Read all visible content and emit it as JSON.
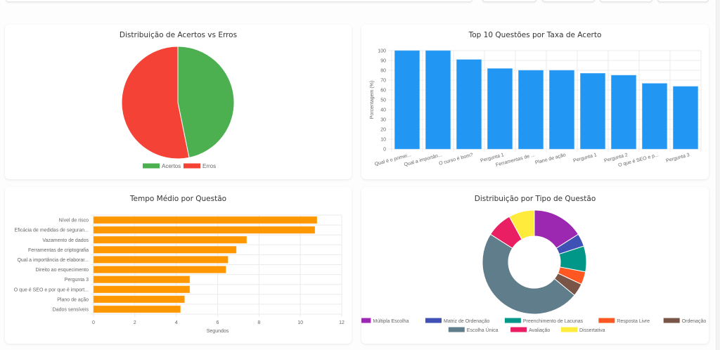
{
  "topbar": {
    "buttons": [
      "",
      "",
      "",
      ""
    ]
  },
  "charts": {
    "pie_title": "Distribuição de Acertos vs Erros",
    "bar_title": "Top 10 Questões por Taxa de Acerto",
    "hbar_title": "Tempo Médio por Questão",
    "donut_title": "Distribuição por Tipo de Questão"
  },
  "chart_data": [
    {
      "type": "pie",
      "title": "Distribuição de Acertos vs Erros",
      "labels": [
        "Acertos",
        "Erros"
      ],
      "values": [
        46.8,
        53.2
      ],
      "colors": [
        "#4caf50",
        "#f44336"
      ],
      "legend": "bottom"
    },
    {
      "type": "bar",
      "title": "Top 10 Questões por Taxa de Acerto",
      "categories": [
        "Qual é o primei...",
        "Qual a importân...",
        "O curso é bom?",
        "Pergunta 1",
        "Ferramentas de ...",
        "Plano de ação",
        "Pergunta 1",
        "Pergunta 2",
        "O que é SEO e p...",
        "Pergunta 3"
      ],
      "values": [
        100,
        100,
        90.9,
        81.8,
        80,
        80,
        76.9,
        75,
        66.7,
        63.6
      ],
      "xlabel": "",
      "ylabel": "Porcentagem (%)",
      "ylim": [
        0,
        100
      ],
      "yticks": [
        0,
        10,
        20,
        30,
        40,
        50,
        60,
        70,
        80,
        90,
        100
      ],
      "color": "#2196f3",
      "grid": true
    },
    {
      "type": "bar",
      "orientation": "horizontal",
      "title": "Tempo Médio por Questão",
      "categories": [
        "Nível de risco",
        "Eficácia de medidas de seguran...",
        "Vazamento de dados",
        "Ferramentas de criptografia",
        "Qual a importância de elaborar...",
        "Direito ao esquecimento",
        "Pergunta 3",
        "O que é SEO e por que é import...",
        "Plano de ação",
        "Dados sensíveis"
      ],
      "values": [
        10.8,
        10.7,
        7.4,
        6.9,
        6.5,
        6.4,
        4.65,
        4.65,
        4.4,
        4.2
      ],
      "xlabel": "Segundos",
      "ylabel": "",
      "xlim": [
        0,
        12
      ],
      "xticks": [
        0,
        2,
        4,
        6,
        8,
        10,
        12
      ],
      "color": "#ff9800",
      "grid": true
    },
    {
      "type": "pie",
      "variant": "doughnut",
      "title": "Distribuição por Tipo de Questão",
      "labels": [
        "Múltipla Escolha",
        "Matriz de Ordenação",
        "Preenchimento de Lacunas",
        "Resposta Livre",
        "Ordenação",
        "Escolha Única",
        "Avaliação",
        "Dissertativa"
      ],
      "values": [
        4,
        1,
        2,
        1,
        1,
        12,
        2,
        2
      ],
      "colors": [
        "#9c27b0",
        "#3f51b5",
        "#009688",
        "#ff5722",
        "#795548",
        "#607d8b",
        "#e91e63",
        "#ffeb3b"
      ],
      "legend": "bottom"
    }
  ]
}
